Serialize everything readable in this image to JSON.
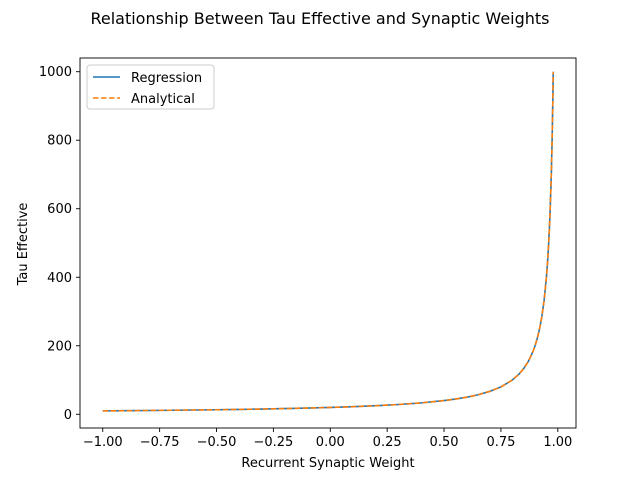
{
  "chart_data": {
    "type": "line",
    "title": "Relationship Between Tau Effective and Synaptic Weights",
    "xlabel": "Recurrent Synaptic Weight",
    "ylabel": "Tau Effective",
    "xlim": [
      -1.1,
      1.08
    ],
    "ylim": [
      -40,
      1040
    ],
    "x_ticks": [
      -1.0,
      -0.75,
      -0.5,
      -0.25,
      0.0,
      0.25,
      0.5,
      0.75,
      1.0
    ],
    "x_tick_labels": [
      "−1.00",
      "−0.75",
      "−0.50",
      "−0.25",
      "0.00",
      "0.25",
      "0.50",
      "0.75",
      "1.00"
    ],
    "y_ticks": [
      0,
      200,
      400,
      600,
      800,
      1000
    ],
    "y_tick_labels": [
      "0",
      "200",
      "400",
      "600",
      "800",
      "1000"
    ],
    "grid": false,
    "legend_position": "top-left",
    "series": [
      {
        "name": "Regression",
        "color": "#1f77b4",
        "style": "solid",
        "x": [
          -1.0,
          -0.9,
          -0.8,
          -0.7,
          -0.6,
          -0.5,
          -0.4,
          -0.3,
          -0.2,
          -0.1,
          0.0,
          0.1,
          0.2,
          0.3,
          0.4,
          0.5,
          0.55,
          0.6,
          0.65,
          0.7,
          0.75,
          0.8,
          0.83,
          0.85,
          0.87,
          0.89,
          0.9,
          0.91,
          0.92,
          0.93,
          0.94,
          0.95,
          0.955,
          0.96,
          0.965,
          0.97,
          0.972,
          0.975,
          0.978,
          0.98
        ],
        "y": [
          10,
          10.5,
          11.1,
          11.8,
          12.5,
          13.3,
          14.3,
          15.4,
          16.7,
          18.2,
          20,
          22.2,
          25,
          28.6,
          33.3,
          40,
          44.4,
          50,
          57.1,
          66.7,
          80,
          100,
          117.6,
          133.3,
          153.8,
          181.8,
          200,
          222.2,
          250,
          285.7,
          333.3,
          400,
          444.4,
          500,
          571.4,
          666.7,
          714.3,
          800,
          909.1,
          1000
        ]
      },
      {
        "name": "Analytical",
        "color": "#ff7f0e",
        "style": "dashed",
        "x": [
          -1.0,
          -0.9,
          -0.8,
          -0.7,
          -0.6,
          -0.5,
          -0.4,
          -0.3,
          -0.2,
          -0.1,
          0.0,
          0.1,
          0.2,
          0.3,
          0.4,
          0.5,
          0.55,
          0.6,
          0.65,
          0.7,
          0.75,
          0.8,
          0.83,
          0.85,
          0.87,
          0.89,
          0.9,
          0.91,
          0.92,
          0.93,
          0.94,
          0.95,
          0.955,
          0.96,
          0.965,
          0.97,
          0.972,
          0.975,
          0.978,
          0.98
        ],
        "y": [
          10,
          10.5,
          11.1,
          11.8,
          12.5,
          13.3,
          14.3,
          15.4,
          16.7,
          18.2,
          20,
          22.2,
          25,
          28.6,
          33.3,
          40,
          44.4,
          50,
          57.1,
          66.7,
          80,
          100,
          117.6,
          133.3,
          153.8,
          181.8,
          200,
          222.2,
          250,
          285.7,
          333.3,
          400,
          444.4,
          500,
          571.4,
          666.7,
          714.3,
          800,
          909.1,
          1000
        ]
      }
    ]
  }
}
